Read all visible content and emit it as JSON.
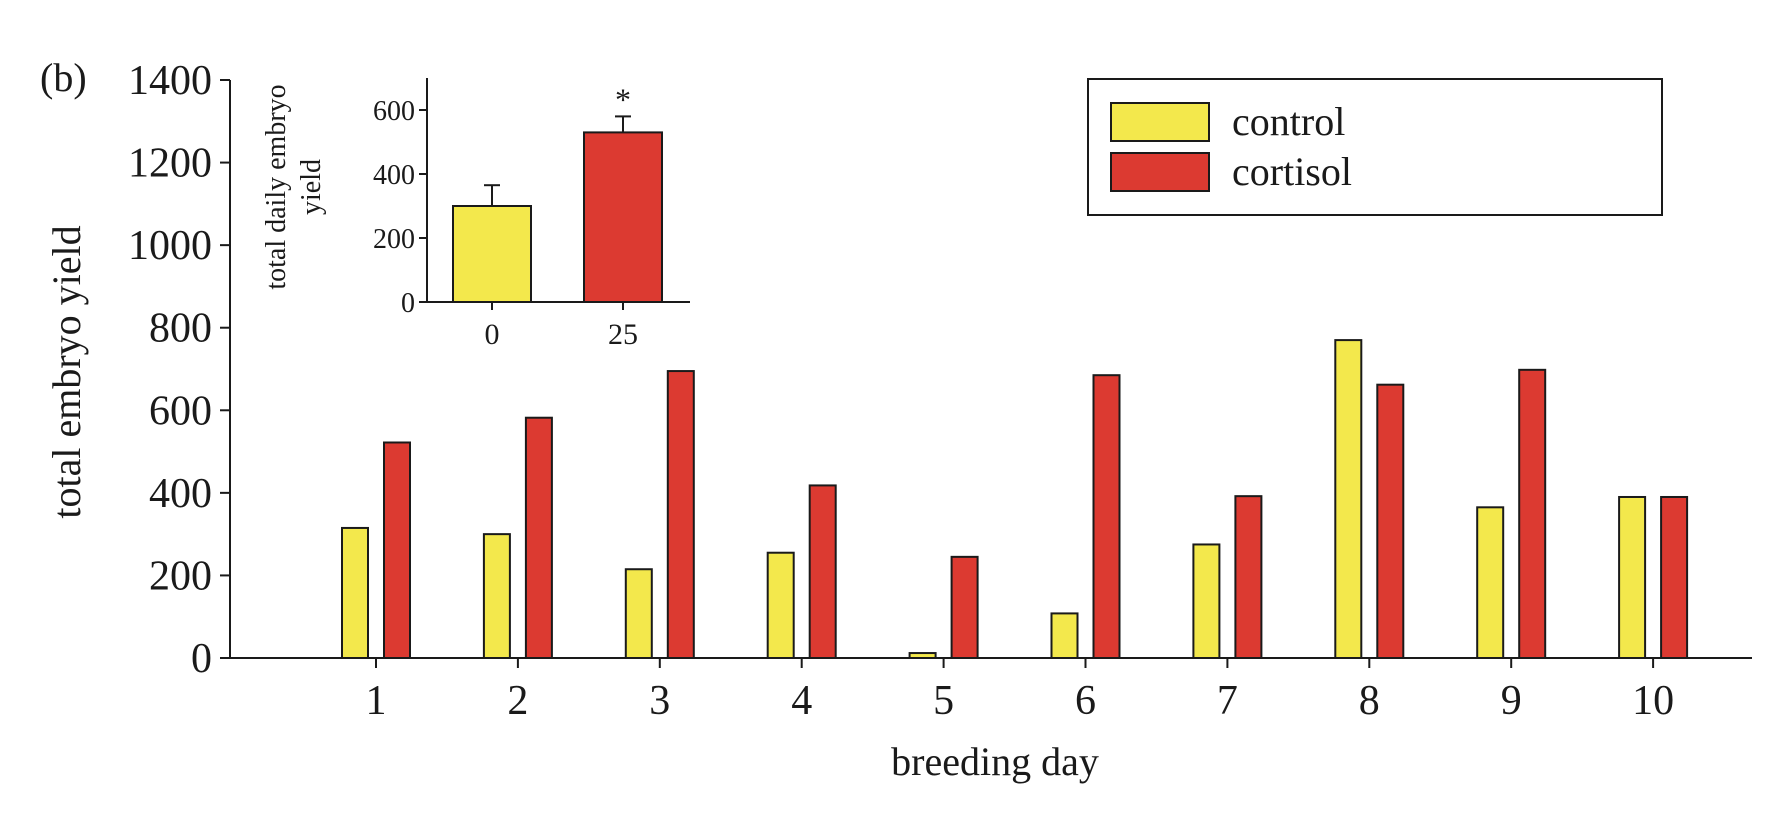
{
  "panel_label": "(b)",
  "chart_data": [
    {
      "type": "bar",
      "xlabel": "breeding day",
      "ylabel": "total embryo yield",
      "ylim": [
        0,
        1400
      ],
      "yticks": [
        0,
        200,
        400,
        600,
        800,
        1000,
        1200,
        1400
      ],
      "categories": [
        "1",
        "2",
        "3",
        "4",
        "5",
        "6",
        "7",
        "8",
        "9",
        "10"
      ],
      "series": [
        {
          "name": "control",
          "color": "#f3e84c",
          "values": [
            315,
            300,
            215,
            255,
            12,
            108,
            275,
            770,
            365,
            390
          ]
        },
        {
          "name": "cortisol",
          "color": "#dc3a31",
          "values": [
            522,
            582,
            695,
            418,
            245,
            685,
            392,
            662,
            698,
            390
          ]
        }
      ],
      "legend": {
        "position": "top-right",
        "labels": [
          "control",
          "cortisol"
        ]
      }
    },
    {
      "type": "bar",
      "xlabel": "",
      "ylabel_lines": [
        "total daily embryo",
        "yield"
      ],
      "ylim": [
        0,
        700
      ],
      "yticks": [
        0,
        200,
        400,
        600
      ],
      "categories": [
        "0",
        "25"
      ],
      "values": [
        300,
        530
      ],
      "errors": [
        65,
        50
      ],
      "colors": [
        "#f3e84c",
        "#dc3a31"
      ],
      "annotations": [
        "",
        "*"
      ]
    }
  ]
}
